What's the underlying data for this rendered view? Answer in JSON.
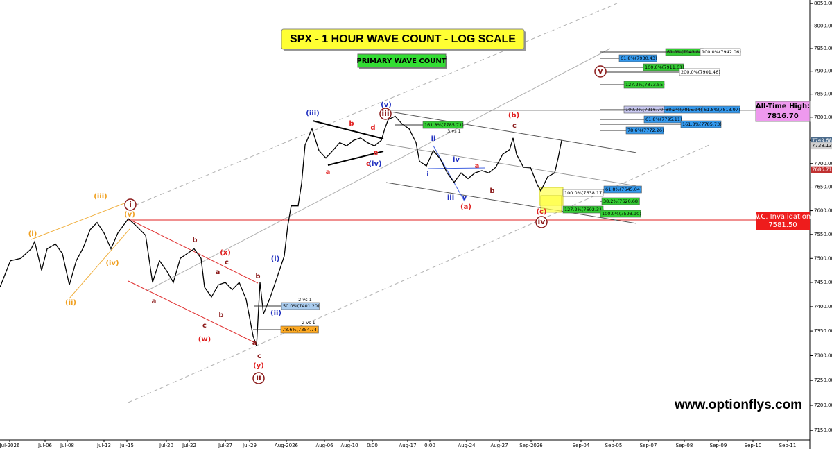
{
  "chart_data": {
    "type": "line",
    "title": "SPX - 1  HOUR WAVE COUNT - LOG SCALE",
    "subtitle": "PRIMARY WAVE COUNT",
    "log_scale": true,
    "color": "#000000",
    "xlim": [
      0,
      233.6
    ],
    "ylim": [
      7131,
      8058
    ],
    "xticks": [
      {
        "value": 2.8,
        "label": "Jul-2026"
      },
      {
        "value": 13,
        "label": "Jul-06"
      },
      {
        "value": 19.4,
        "label": "Jul-08"
      },
      {
        "value": 30,
        "label": "Jul-13"
      },
      {
        "value": 36.6,
        "label": "Jul-15"
      },
      {
        "value": 48,
        "label": "Jul-20"
      },
      {
        "value": 54.6,
        "label": "Jul-22"
      },
      {
        "value": 65,
        "label": "Jul-27"
      },
      {
        "value": 72,
        "label": "Jul-29"
      },
      {
        "value": 82.6,
        "label": "Aug-2026"
      },
      {
        "value": 93.6,
        "label": "Aug-06"
      },
      {
        "value": 100.8,
        "label": "Aug-10"
      },
      {
        "value": 107.4,
        "label": "0:00"
      },
      {
        "value": 117.6,
        "label": "Aug-17"
      },
      {
        "value": 124,
        "label": "0:00"
      },
      {
        "value": 134.6,
        "label": "Aug-24"
      },
      {
        "value": 144,
        "label": "Aug-27"
      },
      {
        "value": 153.2,
        "label": "Sep-2026"
      },
      {
        "value": 167.6,
        "label": "Sep-04"
      },
      {
        "value": 177,
        "label": "Sep-05"
      },
      {
        "value": 187,
        "label": "Sep-07"
      },
      {
        "value": 197.4,
        "label": "Sep-08"
      },
      {
        "value": 207.2,
        "label": "Sep-09"
      },
      {
        "value": 217.2,
        "label": "Sep-10"
      },
      {
        "value": 227.2,
        "label": "Sep-11"
      }
    ],
    "yticks": [
      {
        "value": 8050,
        "label": "8050.00"
      },
      {
        "value": 8000,
        "label": "8000.00"
      },
      {
        "value": 7950,
        "label": "7950.00"
      },
      {
        "value": 7900,
        "label": "7900.00"
      },
      {
        "value": 7850,
        "label": "7850.00"
      },
      {
        "value": 7800,
        "label": "7800.00"
      },
      {
        "value": 7750,
        "label": "7750.00"
      },
      {
        "value": 7700,
        "label": "7700.00"
      },
      {
        "value": 7650,
        "label": "7650.00"
      },
      {
        "value": 7600,
        "label": "7600.00"
      },
      {
        "value": 7550,
        "label": "7550.00"
      },
      {
        "value": 7500,
        "label": "7500.00"
      },
      {
        "value": 7450,
        "label": "7450.00"
      },
      {
        "value": 7400,
        "label": "7400.00"
      },
      {
        "value": 7350,
        "label": "7350.00"
      },
      {
        "value": 7300,
        "label": "7300.00"
      },
      {
        "value": 7250,
        "label": "7250.00"
      },
      {
        "value": 7200,
        "label": "7200.00"
      },
      {
        "value": 7150,
        "label": "7150.00"
      }
    ],
    "x": [
      0,
      3,
      6,
      9,
      10,
      12,
      13.6,
      16,
      18,
      20,
      22,
      24,
      26,
      28,
      30,
      32,
      34,
      37,
      39,
      42,
      44,
      46,
      48,
      50,
      52,
      54,
      56,
      58,
      59,
      61,
      63,
      65,
      67,
      69,
      71,
      73,
      74,
      75,
      76,
      78,
      80,
      82,
      83,
      84,
      86,
      87,
      88,
      90,
      92,
      94,
      96,
      98,
      100,
      102,
      104,
      106,
      108,
      110,
      111,
      112,
      114,
      116,
      118,
      120,
      121,
      123,
      125,
      127,
      129,
      131,
      133,
      135,
      137,
      139,
      141,
      143,
      145,
      147,
      148,
      149,
      151,
      153,
      155,
      156,
      158,
      160,
      161,
      162
    ],
    "values": [
      7440,
      7495,
      7500,
      7520,
      7535,
      7475,
      7520,
      7530,
      7510,
      7445,
      7495,
      7522,
      7560,
      7575,
      7553,
      7520,
      7553,
      7583,
      7570,
      7548,
      7450,
      7495,
      7475,
      7450,
      7500,
      7510,
      7520,
      7500,
      7440,
      7420,
      7445,
      7450,
      7435,
      7450,
      7415,
      7340,
      7320,
      7450,
      7385,
      7420,
      7462,
      7505,
      7568,
      7610,
      7610,
      7658,
      7740,
      7775,
      7728,
      7712,
      7728,
      7745,
      7738,
      7750,
      7755,
      7745,
      7738,
      7750,
      7775,
      7795,
      7802,
      7785,
      7775,
      7745,
      7705,
      7695,
      7728,
      7710,
      7680,
      7660,
      7680,
      7668,
      7680,
      7685,
      7680,
      7692,
      7720,
      7730,
      7755,
      7720,
      7692,
      7692,
      7655,
      7642,
      7672,
      7680,
      7712,
      7749.68
    ],
    "price_tags": [
      {
        "value": 7749.68,
        "label": "7749.68",
        "color": "#4a6a8a"
      },
      {
        "value": 7738.13,
        "label": "7738.13",
        "color": "#d0d0d0"
      },
      {
        "value": 7686.71,
        "label": "7686.71",
        "color": "#c03030"
      }
    ],
    "ath": {
      "title": "All-Time High:",
      "value": "7816.70"
    },
    "invalidation": {
      "title": "W.C. Invalidation:",
      "value": "7581.50"
    },
    "website": "www.optionflys.com",
    "notes": [
      "2 vs 1",
      "2 vs 1",
      "3 vs 1"
    ],
    "fib_levels": [
      {
        "label": "61.8%(7943.88)",
        "color": "#33cc33"
      },
      {
        "label": "100.0%(7942.06)",
        "color": "#ffffff"
      },
      {
        "label": "61.8%(7930.43)",
        "color": "#3399ee"
      },
      {
        "label": "100.0%(7911.61)",
        "color": "#33cc33"
      },
      {
        "label": "200.0%(7901.46)",
        "color": "#ffffff"
      },
      {
        "label": "127.2%(7873.55)",
        "color": "#33cc33"
      },
      {
        "label": "100.0%(7816.70)",
        "color": "#c8c8f0"
      },
      {
        "label": "38.2%(7815.04)",
        "color": "#3399ee"
      },
      {
        "label": "61.8%(7813.97)",
        "color": "#3399ee"
      },
      {
        "label": "61.8%(7795.11)",
        "color": "#3399ee"
      },
      {
        "label": "161.8%(7785.73)",
        "color": "#3399ee"
      },
      {
        "label": "78.6%(7772.26)",
        "color": "#3399ee"
      },
      {
        "label": "161.8%(7785.71)",
        "color": "#33cc33"
      },
      {
        "label": "61.8%(7645.04)",
        "color": "#3399ee"
      },
      {
        "label": "100.0%(7638.17)",
        "color": "#ffffff"
      },
      {
        "label": "38.2%(7620.68)",
        "color": "#33cc33"
      },
      {
        "label": "127.2%(7602.31)",
        "color": "#33cc33"
      },
      {
        "label": "100.0%(7593.90)",
        "color": "#33cc33"
      },
      {
        "label": "50.0%(7401.20)",
        "color": "#aaccee"
      },
      {
        "label": "78.6%(7354.74)",
        "color": "#ffaa22"
      }
    ],
    "wave_labels": [
      {
        "text": "(i)",
        "color": "#f0a020"
      },
      {
        "text": "(ii)",
        "color": "#f0a020"
      },
      {
        "text": "(iii)",
        "color": "#f0a020"
      },
      {
        "text": "(iv)",
        "color": "#f0a020"
      },
      {
        "text": "(v)",
        "color": "#f0a020"
      },
      {
        "text": "i",
        "color": "#8b1a1a",
        "circled": true
      },
      {
        "text": "a",
        "color": "#8b1a1a"
      },
      {
        "text": "b",
        "color": "#8b1a1a"
      },
      {
        "text": "c",
        "color": "#8b1a1a"
      },
      {
        "text": "(w)",
        "color": "#e02020"
      },
      {
        "text": "(x)",
        "color": "#e02020"
      },
      {
        "text": "c",
        "color": "#8b1a1a"
      },
      {
        "text": "a",
        "color": "#8b1a1a"
      },
      {
        "text": "b",
        "color": "#8b1a1a"
      },
      {
        "text": "b",
        "color": "#8b1a1a"
      },
      {
        "text": "a",
        "color": "#8b1a1a"
      },
      {
        "text": "c",
        "color": "#8b1a1a"
      },
      {
        "text": "(y)",
        "color": "#e02020"
      },
      {
        "text": "ii",
        "color": "#8b1a1a",
        "circled": true
      },
      {
        "text": "(i)",
        "color": "#2030c0"
      },
      {
        "text": "(ii)",
        "color": "#2030c0"
      },
      {
        "text": "(iii)",
        "color": "#2030c0"
      },
      {
        "text": "b",
        "color": "#e02020"
      },
      {
        "text": "d",
        "color": "#e02020"
      },
      {
        "text": "a",
        "color": "#e02020"
      },
      {
        "text": "c",
        "color": "#e02020"
      },
      {
        "text": "(iv)",
        "color": "#2030c0"
      },
      {
        "text": "e",
        "color": "#e02020"
      },
      {
        "text": "iii",
        "color": "#8b1a1a",
        "circled": true
      },
      {
        "text": "(v)",
        "color": "#2030c0"
      },
      {
        "text": "ii",
        "color": "#2030c0"
      },
      {
        "text": "iv",
        "color": "#2030c0"
      },
      {
        "text": "i",
        "color": "#2030c0"
      },
      {
        "text": "iii",
        "color": "#2030c0"
      },
      {
        "text": "v",
        "color": "#2030c0"
      },
      {
        "text": "a",
        "color": "#e02020"
      },
      {
        "text": "b",
        "color": "#8b1a1a"
      },
      {
        "text": "(a)",
        "color": "#e02020"
      },
      {
        "text": "(b)",
        "color": "#e02020"
      },
      {
        "text": "c",
        "color": "#8b1a1a"
      },
      {
        "text": "(c)",
        "color": "#e02020"
      },
      {
        "text": "iv",
        "color": "#8b1a1a",
        "circled": true
      },
      {
        "text": "v",
        "color": "#8b1a1a",
        "circled": true
      }
    ]
  }
}
